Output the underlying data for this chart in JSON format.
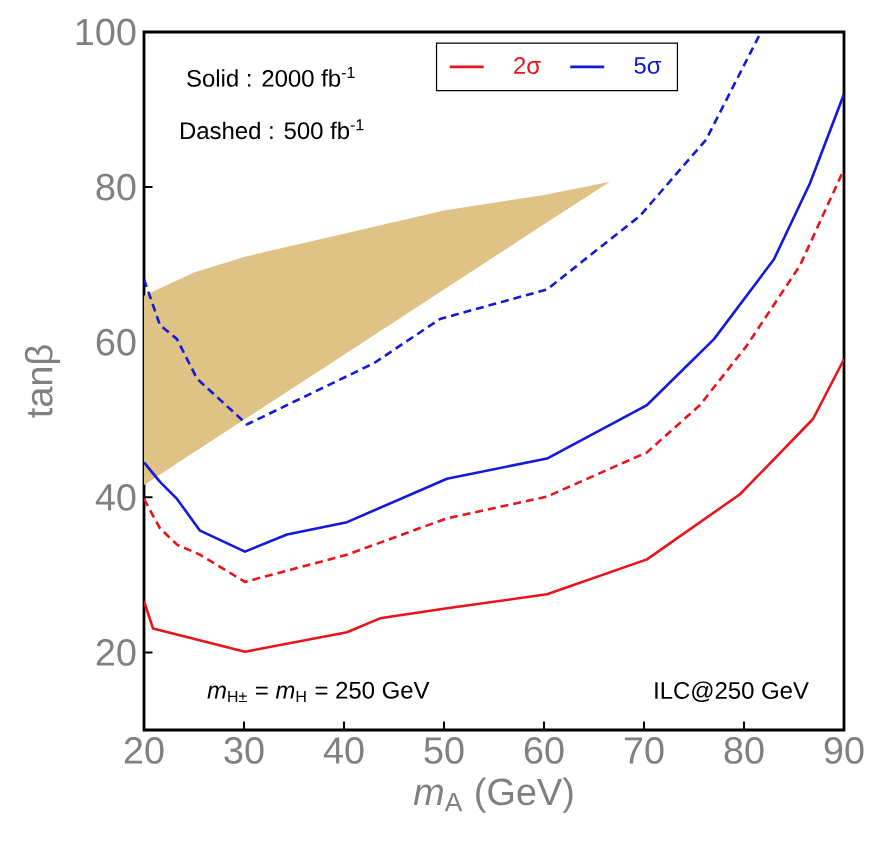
{
  "chart_data": {
    "type": "line",
    "xlabel": "*m*$_{A}$ (GeV)",
    "ylabel": "tanβ",
    "xlim": [
      20,
      90
    ],
    "xticks": [
      20,
      30,
      40,
      50,
      60,
      70,
      80,
      90
    ],
    "ylim": [
      10,
      100
    ],
    "yticks": [
      20,
      40,
      60,
      80,
      100
    ],
    "grid": false,
    "legend": "top",
    "marker": "none",
    "annotations": [
      "Solid : 2000 fb$^{-1}$",
      "Dashed : 500  fb$^{-1}$",
      "*m*$_{H±}$ = *m*$_{H}$ = 250 GeV",
      "ILC@250 GeV"
    ],
    "series": [
      {
        "type": "area",
        "color": "#dfc286",
        "x": [
          20,
          25,
          30,
          40,
          50,
          60,
          66.6
        ],
        "values": [
          null,
          null,
          null,
          null,
          null,
          null,
          null
        ],
        "upper": [
          66,
          69,
          71,
          74,
          77,
          79,
          80.7
        ],
        "lower": [
          41.6,
          45.8,
          50,
          58.4,
          66.8,
          75.2,
          80.7
        ]
      },
      {
        "name": "2σ",
        "color": "#e8131b",
        "line_style": "solid",
        "x": [
          20,
          20.9,
          30.1,
          40.3,
          43.6,
          50.3,
          60.3,
          70.3,
          79.6,
          86.9,
          90
        ],
        "values": [
          26.6,
          23.1,
          20.1,
          22.6,
          24.4,
          25.7,
          27.5,
          32,
          40.4,
          50.1,
          57.8
        ]
      },
      {
        "color": "#e8131b",
        "line_style": "dashed",
        "x": [
          20,
          21.6,
          23.3,
          25.6,
          30.1,
          40.3,
          50.3,
          60.3,
          70.3,
          75.6,
          80.3,
          85.6,
          90
        ],
        "values": [
          39.8,
          36,
          33.9,
          32.6,
          29.1,
          32.6,
          37.3,
          40.1,
          45.8,
          51.9,
          59.6,
          69.9,
          82.3
        ]
      },
      {
        "name": "5σ",
        "color": "#1418d8",
        "line_style": "solid",
        "x": [
          20,
          21.6,
          23.3,
          25.6,
          30.1,
          34.3,
          40.3,
          50.3,
          60.3,
          70.3,
          77,
          83,
          86.6,
          90
        ],
        "values": [
          44.5,
          42,
          39.8,
          35.7,
          33,
          35.2,
          36.8,
          42.4,
          45,
          51.9,
          60.4,
          70.7,
          80.5,
          92
        ]
      },
      {
        "color": "#1418d8",
        "line_style": "dashed",
        "x": [
          20,
          21.6,
          23.3,
          25.3,
          30.3,
          35.6,
          43,
          49.6,
          60.3,
          69.6,
          76.2,
          81.7
        ],
        "values": [
          68.1,
          62.2,
          60.4,
          55.3,
          49.4,
          52.7,
          57.3,
          63,
          66.8,
          76.3,
          86.1,
          100
        ]
      }
    ]
  }
}
